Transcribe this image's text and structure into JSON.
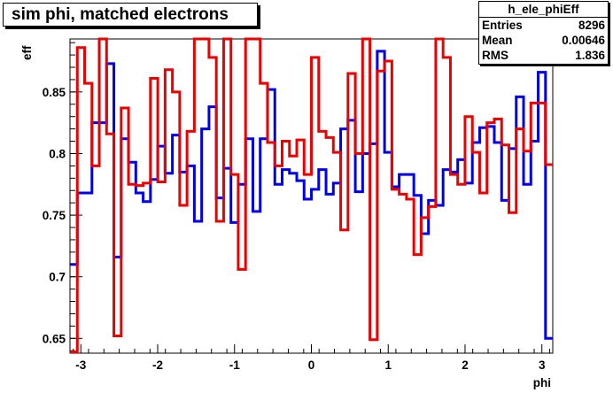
{
  "title": "sim phi, matched electrons",
  "stats_box": {
    "name": "h_ele_phiEff",
    "rows": [
      {
        "label": "Entries",
        "value": "8296"
      },
      {
        "label": "Mean",
        "value": "0.00646"
      },
      {
        "label": "RMS",
        "value": "1.836"
      }
    ]
  },
  "chart_data": {
    "type": "line",
    "step": true,
    "xlabel": "phi",
    "ylabel": "eff",
    "xlim": [
      -3.1416,
      3.1416
    ],
    "ylim": [
      0.638,
      0.893
    ],
    "xticks": [
      -3,
      -2,
      -1,
      0,
      1,
      2,
      3
    ],
    "xtick_labels": [
      "-3",
      "-2",
      "-1",
      "0",
      "1",
      "2",
      "3"
    ],
    "yticks": [
      0.65,
      0.7,
      0.75,
      0.8,
      0.85
    ],
    "ytick_labels": [
      "0.65",
      "0.7",
      "0.75",
      "0.8",
      "0.85"
    ],
    "bin_edges": [
      -3.1416,
      -3.0463,
      -2.9511,
      -2.8559,
      -2.7607,
      -2.6655,
      -2.5703,
      -2.4751,
      -2.3799,
      -2.2847,
      -2.1894,
      -2.0942,
      -1.999,
      -1.9038,
      -1.8086,
      -1.7134,
      -1.6182,
      -1.523,
      -1.4278,
      -1.3325,
      -1.2373,
      -1.1421,
      -1.0469,
      -0.9517,
      -0.8565,
      -0.7613,
      -0.6661,
      -0.5709,
      -0.4756,
      -0.3804,
      -0.2852,
      -0.19,
      -0.0948,
      0.0004,
      0.0956,
      0.1908,
      0.286,
      0.3813,
      0.4765,
      0.5717,
      0.6669,
      0.7621,
      0.8573,
      0.9525,
      1.0477,
      1.1429,
      1.2382,
      1.3334,
      1.4286,
      1.5238,
      1.619,
      1.7142,
      1.8094,
      1.9046,
      1.9998,
      2.0951,
      2.1903,
      2.2855,
      2.3807,
      2.4759,
      2.5711,
      2.6663,
      2.7615,
      2.8567,
      2.952,
      3.0472,
      3.1424
    ],
    "colors": {
      "series_1": "#0000ee",
      "series_2": "#ee0000"
    },
    "series": [
      {
        "values": [
          0.71,
          0.768,
          0.768,
          0.825,
          0.825,
          0.873,
          0.716,
          0.812,
          0.793,
          0.768,
          0.761,
          0.779,
          0.806,
          0.784,
          0.815,
          0.785,
          0.79,
          0.745,
          0.82,
          0.838,
          0.764,
          0.788,
          0.744,
          0.775,
          0.812,
          0.753,
          0.812,
          0.852,
          0.775,
          0.787,
          0.784,
          0.778,
          0.763,
          0.771,
          0.787,
          0.767,
          0.776,
          0.82,
          0.827,
          0.769,
          0.8,
          0.808,
          0.883,
          0.801,
          0.773,
          0.783,
          0.783,
          0.766,
          0.735,
          0.762,
          0.758,
          0.787,
          0.785,
          0.795,
          0.776,
          0.809,
          0.821,
          0.822,
          0.809,
          0.762,
          0.804,
          0.846,
          0.775,
          0.81,
          0.866,
          0.65
        ],
        "values_note": ""
      },
      {
        "values": [
          0.639,
          0.886,
          0.857,
          0.79,
          0.893,
          0.816,
          0.652,
          0.837,
          0.775,
          0.774,
          0.776,
          0.861,
          0.777,
          0.868,
          0.85,
          0.758,
          0.818,
          0.893,
          0.893,
          0.878,
          0.745,
          0.893,
          0.783,
          0.706,
          0.893,
          0.893,
          0.857,
          0.809,
          0.79,
          0.81,
          0.798,
          0.811,
          0.783,
          0.878,
          0.818,
          0.813,
          0.801,
          0.738,
          0.865,
          0.8,
          0.893,
          0.649,
          0.867,
          0.875,
          0.771,
          0.767,
          0.763,
          0.718,
          0.748,
          0.757,
          0.893,
          0.878,
          0.783,
          0.775,
          0.83,
          0.801,
          0.768,
          0.825,
          0.828,
          0.807,
          0.752,
          0.82,
          0.802,
          0.841,
          0.841,
          0.791
        ]
      }
    ]
  }
}
